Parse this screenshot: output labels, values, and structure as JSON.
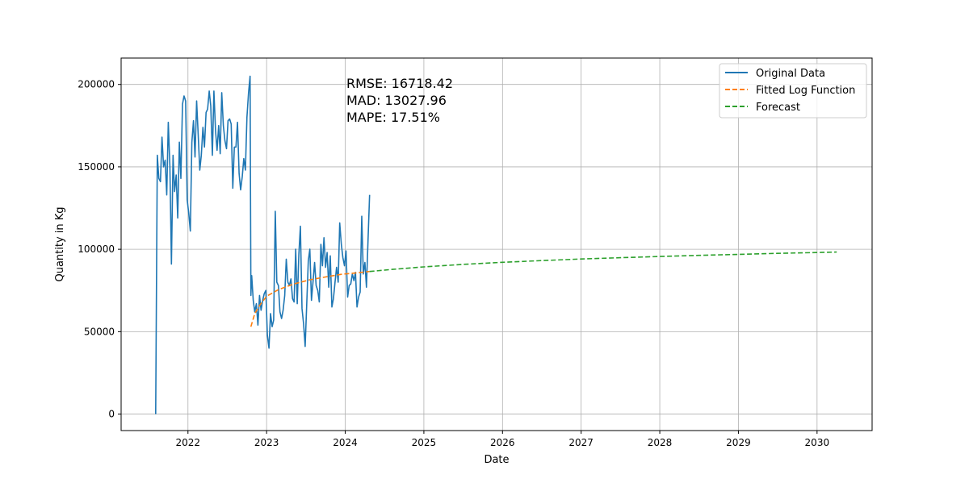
{
  "chart_data": {
    "type": "line",
    "title": "",
    "xlabel": "Date",
    "ylabel": "Quantity in Kg",
    "xlim": [
      2021.15,
      2030.7
    ],
    "ylim": [
      -10000,
      216000
    ],
    "x_ticks": [
      2022,
      2023,
      2024,
      2025,
      2026,
      2027,
      2028,
      2029,
      2030
    ],
    "y_ticks": [
      0,
      50000,
      100000,
      150000,
      200000
    ],
    "grid": true,
    "legend_position": "top-right",
    "annotation": [
      "RMSE: 16718.42",
      "MAD: 13027.96",
      "MAPE: 17.51%"
    ],
    "series": [
      {
        "name": "Original Data",
        "color": "#1f77b4",
        "style": "solid",
        "points": [
          [
            2021.59,
            0
          ],
          [
            2021.61,
            157000
          ],
          [
            2021.63,
            143000
          ],
          [
            2021.65,
            141000
          ],
          [
            2021.67,
            168000
          ],
          [
            2021.69,
            150000
          ],
          [
            2021.71,
            154000
          ],
          [
            2021.73,
            133000
          ],
          [
            2021.75,
            177000
          ],
          [
            2021.77,
            150000
          ],
          [
            2021.79,
            91000
          ],
          [
            2021.81,
            157000
          ],
          [
            2021.83,
            135000
          ],
          [
            2021.85,
            145000
          ],
          [
            2021.87,
            119000
          ],
          [
            2021.89,
            165000
          ],
          [
            2021.91,
            143000
          ],
          [
            2021.93,
            188000
          ],
          [
            2021.95,
            193000
          ],
          [
            2021.97,
            190000
          ],
          [
            2021.99,
            130000
          ],
          [
            2022.01,
            122000
          ],
          [
            2022.03,
            111000
          ],
          [
            2022.05,
            165000
          ],
          [
            2022.07,
            178000
          ],
          [
            2022.09,
            156000
          ],
          [
            2022.11,
            190000
          ],
          [
            2022.13,
            170000
          ],
          [
            2022.15,
            148000
          ],
          [
            2022.17,
            157000
          ],
          [
            2022.19,
            174000
          ],
          [
            2022.21,
            162000
          ],
          [
            2022.23,
            183000
          ],
          [
            2022.25,
            185000
          ],
          [
            2022.27,
            196000
          ],
          [
            2022.29,
            187000
          ],
          [
            2022.31,
            157000
          ],
          [
            2022.33,
            196000
          ],
          [
            2022.35,
            172000
          ],
          [
            2022.37,
            160000
          ],
          [
            2022.39,
            175000
          ],
          [
            2022.41,
            158000
          ],
          [
            2022.43,
            195000
          ],
          [
            2022.45,
            175000
          ],
          [
            2022.47,
            166000
          ],
          [
            2022.49,
            161000
          ],
          [
            2022.51,
            178000
          ],
          [
            2022.53,
            179000
          ],
          [
            2022.55,
            176000
          ],
          [
            2022.57,
            137000
          ],
          [
            2022.59,
            162000
          ],
          [
            2022.61,
            162000
          ],
          [
            2022.63,
            177000
          ],
          [
            2022.65,
            146000
          ],
          [
            2022.67,
            136000
          ],
          [
            2022.69,
            144000
          ],
          [
            2022.71,
            155000
          ],
          [
            2022.73,
            148000
          ],
          [
            2022.75,
            180000
          ],
          [
            2022.77,
            195000
          ],
          [
            2022.79,
            205000
          ],
          [
            2022.8,
            72000
          ],
          [
            2022.81,
            84000
          ],
          [
            2022.83,
            69000
          ],
          [
            2022.85,
            62000
          ],
          [
            2022.87,
            67000
          ],
          [
            2022.89,
            54000
          ],
          [
            2022.91,
            72000
          ],
          [
            2022.93,
            63000
          ],
          [
            2022.95,
            69000
          ],
          [
            2022.97,
            73000
          ],
          [
            2022.99,
            75000
          ],
          [
            2023.01,
            48000
          ],
          [
            2023.03,
            40000
          ],
          [
            2023.05,
            61000
          ],
          [
            2023.07,
            53000
          ],
          [
            2023.09,
            57000
          ],
          [
            2023.11,
            123000
          ],
          [
            2023.13,
            80000
          ],
          [
            2023.15,
            78000
          ],
          [
            2023.17,
            62000
          ],
          [
            2023.19,
            58000
          ],
          [
            2023.21,
            63000
          ],
          [
            2023.23,
            72000
          ],
          [
            2023.25,
            94000
          ],
          [
            2023.27,
            80000
          ],
          [
            2023.29,
            78000
          ],
          [
            2023.31,
            82000
          ],
          [
            2023.33,
            70000
          ],
          [
            2023.35,
            68000
          ],
          [
            2023.37,
            100000
          ],
          [
            2023.39,
            67000
          ],
          [
            2023.41,
            97000
          ],
          [
            2023.43,
            114000
          ],
          [
            2023.45,
            64000
          ],
          [
            2023.47,
            55000
          ],
          [
            2023.49,
            41000
          ],
          [
            2023.51,
            66000
          ],
          [
            2023.53,
            93000
          ],
          [
            2023.55,
            100000
          ],
          [
            2023.57,
            69000
          ],
          [
            2023.59,
            80000
          ],
          [
            2023.61,
            92000
          ],
          [
            2023.63,
            78000
          ],
          [
            2023.65,
            75000
          ],
          [
            2023.67,
            68000
          ],
          [
            2023.69,
            103000
          ],
          [
            2023.71,
            90000
          ],
          [
            2023.73,
            107000
          ],
          [
            2023.75,
            89000
          ],
          [
            2023.77,
            98000
          ],
          [
            2023.79,
            77000
          ],
          [
            2023.81,
            96000
          ],
          [
            2023.83,
            65000
          ],
          [
            2023.85,
            70000
          ],
          [
            2023.87,
            80000
          ],
          [
            2023.89,
            89000
          ],
          [
            2023.91,
            80000
          ],
          [
            2023.93,
            116000
          ],
          [
            2023.95,
            103000
          ],
          [
            2023.97,
            95000
          ],
          [
            2023.99,
            90000
          ],
          [
            2024.01,
            99000
          ],
          [
            2024.03,
            71000
          ],
          [
            2024.05,
            78000
          ],
          [
            2024.07,
            79000
          ],
          [
            2024.09,
            85000
          ],
          [
            2024.11,
            81000
          ],
          [
            2024.13,
            86000
          ],
          [
            2024.15,
            65000
          ],
          [
            2024.17,
            71000
          ],
          [
            2024.19,
            74000
          ],
          [
            2024.21,
            120000
          ],
          [
            2024.23,
            85000
          ],
          [
            2024.25,
            92000
          ],
          [
            2024.27,
            77000
          ],
          [
            2024.29,
            106000
          ],
          [
            2024.31,
            133000
          ]
        ]
      },
      {
        "name": "Fitted Log Function",
        "color": "#ff7f0e",
        "style": "dashed",
        "points": [
          [
            2022.8,
            53000
          ],
          [
            2022.85,
            61000
          ],
          [
            2022.92,
            66500
          ],
          [
            2023.0,
            71500
          ],
          [
            2023.15,
            75500
          ],
          [
            2023.35,
            79000
          ],
          [
            2023.55,
            81500
          ],
          [
            2023.75,
            83200
          ],
          [
            2023.95,
            84800
          ],
          [
            2024.15,
            85700
          ],
          [
            2024.31,
            86500
          ]
        ]
      },
      {
        "name": "Forecast",
        "color": "#2ca02c",
        "style": "dashed",
        "points": [
          [
            2024.31,
            86500
          ],
          [
            2024.6,
            87800
          ],
          [
            2025.0,
            89300
          ],
          [
            2025.5,
            90800
          ],
          [
            2026.0,
            92100
          ],
          [
            2026.5,
            93100
          ],
          [
            2027.0,
            94100
          ],
          [
            2027.5,
            94900
          ],
          [
            2028.0,
            95600
          ],
          [
            2028.5,
            96300
          ],
          [
            2029.0,
            96900
          ],
          [
            2029.5,
            97500
          ],
          [
            2030.0,
            98000
          ],
          [
            2030.25,
            98300
          ]
        ]
      }
    ]
  }
}
